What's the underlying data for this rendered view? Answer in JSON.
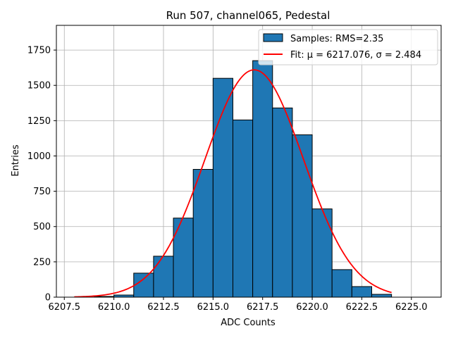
{
  "chart_data": {
    "type": "bar",
    "title": "Run 507, channel065, Pedestal",
    "xlabel": "ADC Counts",
    "ylabel": "Entries",
    "xlim": [
      6207.1,
      6226.5
    ],
    "ylim": [
      0,
      1925
    ],
    "x_ticks": [
      6207.5,
      6210.0,
      6212.5,
      6215.0,
      6217.5,
      6220.0,
      6222.5,
      6225.0
    ],
    "x_tick_labels": [
      "6207.5",
      "6210.0",
      "6212.5",
      "6215.0",
      "6217.5",
      "6220.0",
      "6222.5",
      "6225.0"
    ],
    "y_ticks": [
      0,
      250,
      500,
      750,
      1000,
      1250,
      1500,
      1750
    ],
    "y_tick_labels": [
      "0",
      "250",
      "500",
      "750",
      "1000",
      "1250",
      "1500",
      "1750"
    ],
    "grid": true,
    "legend_position": "top-right",
    "series": [
      {
        "name": "Samples: RMS=2.35",
        "type": "histogram",
        "color": "#1f77b4",
        "edge_color": "#000000",
        "bins": [
          {
            "x0": 6209,
            "x1": 6210,
            "value": 5
          },
          {
            "x0": 6210,
            "x1": 6211,
            "value": 15
          },
          {
            "x0": 6211,
            "x1": 6212,
            "value": 170
          },
          {
            "x0": 6212,
            "x1": 6213,
            "value": 290
          },
          {
            "x0": 6213,
            "x1": 6214,
            "value": 560
          },
          {
            "x0": 6214,
            "x1": 6215,
            "value": 905
          },
          {
            "x0": 6215,
            "x1": 6216,
            "value": 1550
          },
          {
            "x0": 6216,
            "x1": 6217,
            "value": 1255
          },
          {
            "x0": 6217,
            "x1": 6218,
            "value": 1675
          },
          {
            "x0": 6218,
            "x1": 6219,
            "value": 1340
          },
          {
            "x0": 6219,
            "x1": 6220,
            "value": 1150
          },
          {
            "x0": 6220,
            "x1": 6221,
            "value": 625
          },
          {
            "x0": 6221,
            "x1": 6222,
            "value": 195
          },
          {
            "x0": 6222,
            "x1": 6223,
            "value": 75
          },
          {
            "x0": 6223,
            "x1": 6224,
            "value": 20
          }
        ]
      },
      {
        "name": "Fit: μ = 6217.076, σ = 2.484",
        "type": "line",
        "color": "#ff0000",
        "mu": 6217.076,
        "sigma": 2.484,
        "amplitude": 1610,
        "x_range": [
          6208,
          6224
        ]
      }
    ]
  }
}
